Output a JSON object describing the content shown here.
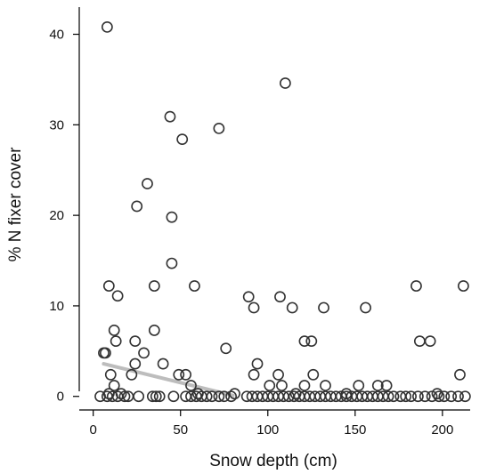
{
  "chart_data": {
    "type": "scatter",
    "xlabel": "Snow depth (cm)",
    "ylabel": "% N fixer cover",
    "xlim": [
      -8,
      222
    ],
    "ylim": [
      -1.5,
      43
    ],
    "x_ticks": [
      0,
      50,
      100,
      150,
      200
    ],
    "y_ticks": [
      0,
      10,
      20,
      30,
      40
    ],
    "grid": false,
    "trend_line": {
      "color": "#bdbdbd",
      "x": [
        6,
        80
      ],
      "y": [
        3.6,
        0.1
      ]
    },
    "points": [
      {
        "x": 8,
        "y": 40.8
      },
      {
        "x": 110,
        "y": 34.6
      },
      {
        "x": 44,
        "y": 30.9
      },
      {
        "x": 72,
        "y": 29.6
      },
      {
        "x": 51,
        "y": 28.4
      },
      {
        "x": 31,
        "y": 23.5
      },
      {
        "x": 25,
        "y": 21
      },
      {
        "x": 45,
        "y": 19.8
      },
      {
        "x": 45,
        "y": 14.7
      },
      {
        "x": 9,
        "y": 12.2
      },
      {
        "x": 35,
        "y": 12.2
      },
      {
        "x": 58,
        "y": 12.2
      },
      {
        "x": 185,
        "y": 12.2
      },
      {
        "x": 212,
        "y": 12.2
      },
      {
        "x": 14,
        "y": 11.1
      },
      {
        "x": 89,
        "y": 11
      },
      {
        "x": 107,
        "y": 11
      },
      {
        "x": 92,
        "y": 9.8
      },
      {
        "x": 114,
        "y": 9.8
      },
      {
        "x": 132,
        "y": 9.8
      },
      {
        "x": 156,
        "y": 9.8
      },
      {
        "x": 12,
        "y": 7.3
      },
      {
        "x": 35,
        "y": 7.3
      },
      {
        "x": 24,
        "y": 6.1
      },
      {
        "x": 13,
        "y": 6.1
      },
      {
        "x": 121,
        "y": 6.1
      },
      {
        "x": 125,
        "y": 6.1
      },
      {
        "x": 187,
        "y": 6.1
      },
      {
        "x": 193,
        "y": 6.1
      },
      {
        "x": 76,
        "y": 5.3
      },
      {
        "x": 6,
        "y": 4.8
      },
      {
        "x": 7,
        "y": 4.8
      },
      {
        "x": 29,
        "y": 4.8
      },
      {
        "x": 24,
        "y": 3.6
      },
      {
        "x": 40,
        "y": 3.6
      },
      {
        "x": 94,
        "y": 3.6
      },
      {
        "x": 10,
        "y": 2.4
      },
      {
        "x": 22,
        "y": 2.4
      },
      {
        "x": 49,
        "y": 2.4
      },
      {
        "x": 53,
        "y": 2.4
      },
      {
        "x": 92,
        "y": 2.4
      },
      {
        "x": 106,
        "y": 2.4
      },
      {
        "x": 126,
        "y": 2.4
      },
      {
        "x": 210,
        "y": 2.4
      },
      {
        "x": 12,
        "y": 1.2
      },
      {
        "x": 56,
        "y": 1.2
      },
      {
        "x": 101,
        "y": 1.2
      },
      {
        "x": 108,
        "y": 1.2
      },
      {
        "x": 121,
        "y": 1.2
      },
      {
        "x": 133,
        "y": 1.2
      },
      {
        "x": 152,
        "y": 1.2
      },
      {
        "x": 163,
        "y": 1.2
      },
      {
        "x": 168,
        "y": 1.2
      },
      {
        "x": 9,
        "y": 0.3
      },
      {
        "x": 16,
        "y": 0.3
      },
      {
        "x": 60,
        "y": 0.3
      },
      {
        "x": 81,
        "y": 0.3
      },
      {
        "x": 116,
        "y": 0.3
      },
      {
        "x": 145,
        "y": 0.3
      },
      {
        "x": 197,
        "y": 0.3
      },
      {
        "x": 4,
        "y": 0
      },
      {
        "x": 8,
        "y": 0
      },
      {
        "x": 11,
        "y": 0
      },
      {
        "x": 14,
        "y": 0
      },
      {
        "x": 18,
        "y": 0
      },
      {
        "x": 20,
        "y": 0
      },
      {
        "x": 26,
        "y": 0
      },
      {
        "x": 34,
        "y": 0
      },
      {
        "x": 36,
        "y": 0
      },
      {
        "x": 38,
        "y": 0
      },
      {
        "x": 46,
        "y": 0
      },
      {
        "x": 53,
        "y": 0
      },
      {
        "x": 56,
        "y": 0
      },
      {
        "x": 59,
        "y": 0
      },
      {
        "x": 62,
        "y": 0
      },
      {
        "x": 65,
        "y": 0
      },
      {
        "x": 68,
        "y": 0
      },
      {
        "x": 72,
        "y": 0
      },
      {
        "x": 75,
        "y": 0
      },
      {
        "x": 79,
        "y": 0
      },
      {
        "x": 88,
        "y": 0
      },
      {
        "x": 91,
        "y": 0
      },
      {
        "x": 94,
        "y": 0
      },
      {
        "x": 97,
        "y": 0
      },
      {
        "x": 100,
        "y": 0
      },
      {
        "x": 103,
        "y": 0
      },
      {
        "x": 106,
        "y": 0
      },
      {
        "x": 109,
        "y": 0
      },
      {
        "x": 112,
        "y": 0
      },
      {
        "x": 115,
        "y": 0
      },
      {
        "x": 118,
        "y": 0
      },
      {
        "x": 121,
        "y": 0
      },
      {
        "x": 124,
        "y": 0
      },
      {
        "x": 127,
        "y": 0
      },
      {
        "x": 130,
        "y": 0
      },
      {
        "x": 133,
        "y": 0
      },
      {
        "x": 136,
        "y": 0
      },
      {
        "x": 139,
        "y": 0
      },
      {
        "x": 142,
        "y": 0
      },
      {
        "x": 145,
        "y": 0
      },
      {
        "x": 148,
        "y": 0
      },
      {
        "x": 151,
        "y": 0
      },
      {
        "x": 154,
        "y": 0
      },
      {
        "x": 157,
        "y": 0
      },
      {
        "x": 160,
        "y": 0
      },
      {
        "x": 163,
        "y": 0
      },
      {
        "x": 166,
        "y": 0
      },
      {
        "x": 169,
        "y": 0
      },
      {
        "x": 172,
        "y": 0
      },
      {
        "x": 176,
        "y": 0
      },
      {
        "x": 179,
        "y": 0
      },
      {
        "x": 182,
        "y": 0
      },
      {
        "x": 186,
        "y": 0
      },
      {
        "x": 190,
        "y": 0
      },
      {
        "x": 194,
        "y": 0
      },
      {
        "x": 198,
        "y": 0
      },
      {
        "x": 201,
        "y": 0
      },
      {
        "x": 205,
        "y": 0
      },
      {
        "x": 209,
        "y": 0
      },
      {
        "x": 213,
        "y": 0
      }
    ]
  }
}
